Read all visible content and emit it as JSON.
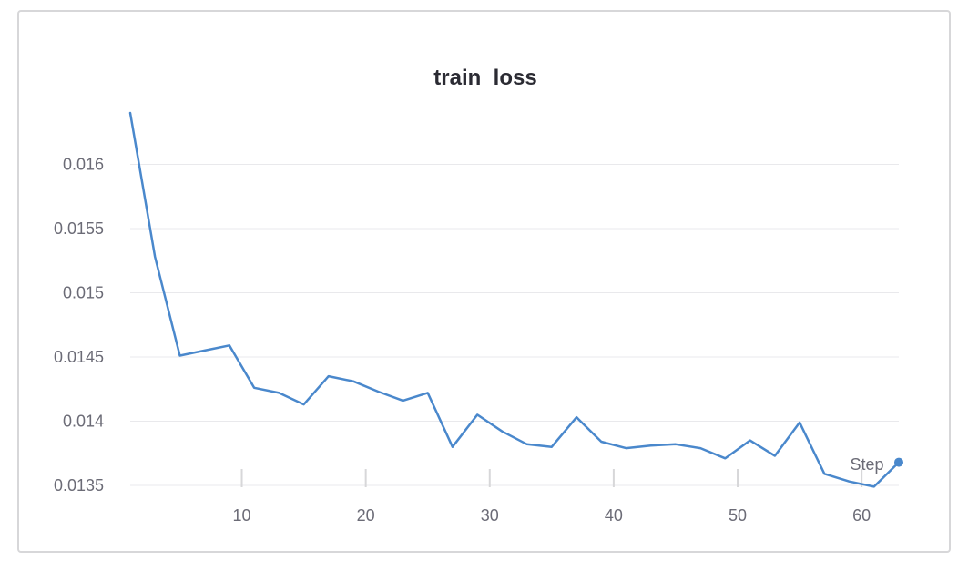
{
  "chart_data": {
    "type": "line",
    "title": "train_loss",
    "xlabel": "Step",
    "ylabel": "",
    "xlim": [
      1,
      63
    ],
    "ylim": [
      0.01345,
      0.01645
    ],
    "x_ticks": [
      10,
      20,
      30,
      40,
      50,
      60
    ],
    "y_ticks": [
      0.0135,
      0.014,
      0.0145,
      0.015,
      0.0155,
      0.016
    ],
    "y_tick_labels": [
      "0.0135",
      "0.014",
      "0.0145",
      "0.015",
      "0.0155",
      "0.016"
    ],
    "x_tick_labels": [
      "10",
      "20",
      "30",
      "40",
      "50",
      "60"
    ],
    "grid": true,
    "series": [
      {
        "name": "",
        "color": "#4a88cc",
        "x": [
          1,
          3,
          5,
          7,
          9,
          11,
          13,
          15,
          17,
          19,
          21,
          23,
          25,
          27,
          29,
          31,
          33,
          35,
          37,
          39,
          41,
          43,
          45,
          47,
          49,
          51,
          53,
          55,
          57,
          59,
          61,
          63
        ],
        "y": [
          0.0164,
          0.01528,
          0.01451,
          0.01455,
          0.01459,
          0.01426,
          0.01422,
          0.01413,
          0.01435,
          0.01431,
          0.01423,
          0.01416,
          0.01422,
          0.0138,
          0.01405,
          0.01392,
          0.01382,
          0.0138,
          0.01403,
          0.01384,
          0.01379,
          0.01381,
          0.01382,
          0.01379,
          0.01371,
          0.01385,
          0.01373,
          0.01399,
          0.01359,
          0.01353,
          0.01349,
          0.01368
        ]
      }
    ]
  }
}
